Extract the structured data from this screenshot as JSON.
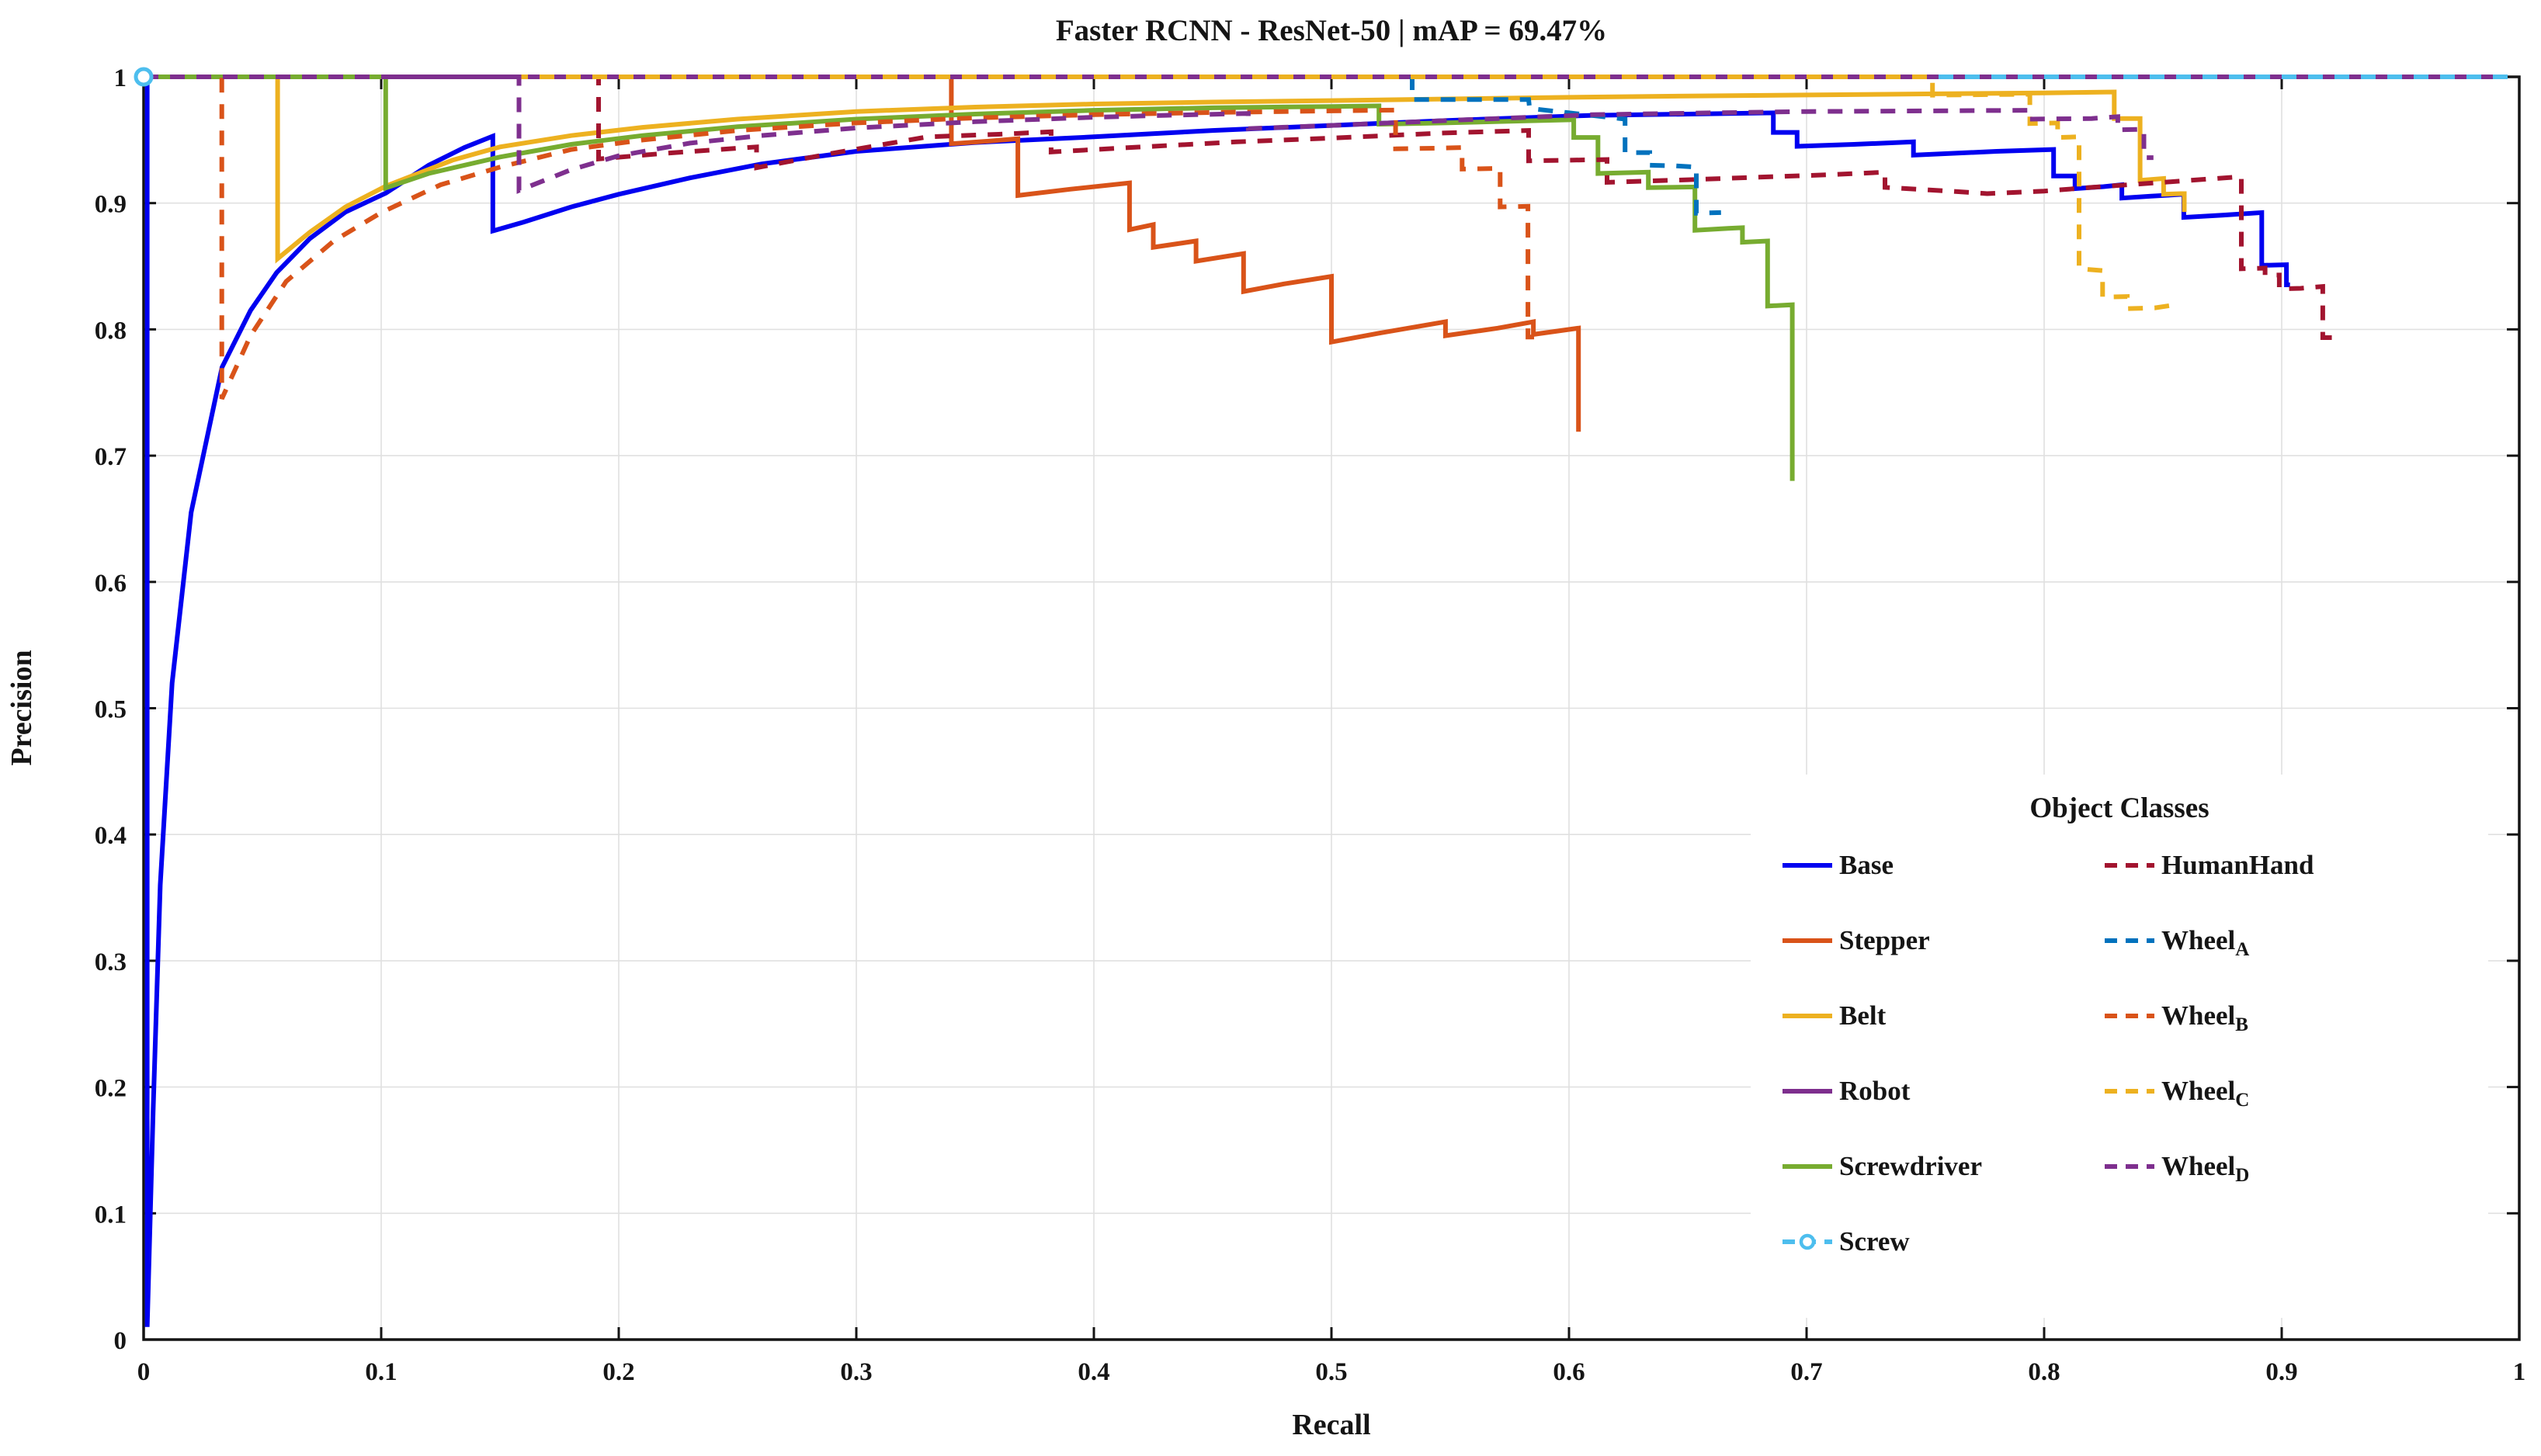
{
  "figure": {
    "title": "Faster RCNN - ResNet-50 | mAP = 69.47%",
    "xlabel": "Recall",
    "ylabel": "Precision"
  },
  "legend": {
    "title": "Object Classes",
    "columns": [
      [
        "base",
        "stepper",
        "belt",
        "robot",
        "screwdriver",
        "screw"
      ],
      [
        "humanhand",
        "wheel_a",
        "wheel_b",
        "wheel_c",
        "wheel_d"
      ]
    ]
  },
  "chart_data": {
    "type": "line",
    "title": "Faster RCNN - ResNet-50 | mAP = 69.47%",
    "xlabel": "Recall",
    "ylabel": "Precision",
    "xlim": [
      0,
      1
    ],
    "ylim": [
      0,
      1
    ],
    "x_ticks": [
      "0",
      "0.1",
      "0.2",
      "0.3",
      "0.4",
      "0.5",
      "0.6",
      "0.7",
      "0.8",
      "0.9",
      "1"
    ],
    "y_ticks": [
      "0",
      "0.1",
      "0.2",
      "0.3",
      "0.4",
      "0.5",
      "0.6",
      "0.7",
      "0.8",
      "0.9",
      "1"
    ],
    "grid": true,
    "grid_color": "#e0e0e0",
    "axis_color": "#141414",
    "legend_position": "lower right",
    "legend_title": "Object Classes",
    "series": [
      {
        "id": "base",
        "name": "Base",
        "color": "#0000f0",
        "style": "solid",
        "marker": "none",
        "points": [
          [
            0.0015,
            1.0
          ],
          [
            0.0015,
            0.01
          ],
          [
            0.004,
            0.18
          ],
          [
            0.007,
            0.36
          ],
          [
            0.012,
            0.52
          ],
          [
            0.02,
            0.655
          ],
          [
            0.033,
            0.77
          ],
          [
            0.045,
            0.815
          ],
          [
            0.056,
            0.845
          ],
          [
            0.07,
            0.872
          ],
          [
            0.085,
            0.893
          ],
          [
            0.102,
            0.908
          ],
          [
            0.12,
            0.93
          ],
          [
            0.135,
            0.944
          ],
          [
            0.147,
            0.953
          ],
          [
            0.147,
            0.878
          ],
          [
            0.16,
            0.885
          ],
          [
            0.18,
            0.897
          ],
          [
            0.2,
            0.907
          ],
          [
            0.23,
            0.92
          ],
          [
            0.26,
            0.931
          ],
          [
            0.3,
            0.941
          ],
          [
            0.35,
            0.948
          ],
          [
            0.4,
            0.9525
          ],
          [
            0.45,
            0.9575
          ],
          [
            0.5,
            0.9615
          ],
          [
            0.55,
            0.9655
          ],
          [
            0.61,
            0.9695
          ],
          [
            0.65,
            0.9705
          ],
          [
            0.686,
            0.9715
          ],
          [
            0.686,
            0.956
          ],
          [
            0.696,
            0.956
          ],
          [
            0.696,
            0.945
          ],
          [
            0.72,
            0.9465
          ],
          [
            0.745,
            0.9485
          ],
          [
            0.745,
            0.938
          ],
          [
            0.78,
            0.941
          ],
          [
            0.804,
            0.9425
          ],
          [
            0.804,
            0.9215
          ],
          [
            0.813,
            0.9215
          ],
          [
            0.813,
            0.9115
          ],
          [
            0.825,
            0.913
          ],
          [
            0.8327,
            0.9145
          ],
          [
            0.8327,
            0.904
          ],
          [
            0.845,
            0.9055
          ],
          [
            0.8588,
            0.907
          ],
          [
            0.8588,
            0.8887
          ],
          [
            0.875,
            0.8905
          ],
          [
            0.8916,
            0.8925
          ],
          [
            0.8916,
            0.8507
          ],
          [
            0.902,
            0.8512
          ],
          [
            0.902,
            0.8353
          ],
          [
            0.9035,
            0.8353
          ]
        ]
      },
      {
        "id": "stepper",
        "name": "Stepper",
        "color": "#d95319",
        "style": "solid",
        "marker": "none",
        "points": [
          [
            0,
            1.0
          ],
          [
            0.34,
            1.0
          ],
          [
            0.34,
            0.947
          ],
          [
            0.355,
            0.949
          ],
          [
            0.368,
            0.951
          ],
          [
            0.368,
            0.906
          ],
          [
            0.39,
            0.911
          ],
          [
            0.415,
            0.916
          ],
          [
            0.415,
            0.879
          ],
          [
            0.425,
            0.883
          ],
          [
            0.425,
            0.865
          ],
          [
            0.443,
            0.87
          ],
          [
            0.443,
            0.854
          ],
          [
            0.463,
            0.86
          ],
          [
            0.463,
            0.83
          ],
          [
            0.48,
            0.836
          ],
          [
            0.5,
            0.842
          ],
          [
            0.5,
            0.79
          ],
          [
            0.52,
            0.797
          ],
          [
            0.548,
            0.806
          ],
          [
            0.548,
            0.795
          ],
          [
            0.57,
            0.801
          ],
          [
            0.585,
            0.806
          ],
          [
            0.585,
            0.796
          ],
          [
            0.604,
            0.801
          ],
          [
            0.604,
            0.719
          ]
        ]
      },
      {
        "id": "belt",
        "name": "Belt",
        "color": "#edb120",
        "style": "solid",
        "marker": "none",
        "points": [
          [
            0,
            1.0
          ],
          [
            0.0564,
            1.0
          ],
          [
            0.0564,
            0.856
          ],
          [
            0.07,
            0.877
          ],
          [
            0.085,
            0.897
          ],
          [
            0.102,
            0.9135
          ],
          [
            0.13,
            0.934
          ],
          [
            0.15,
            0.9445
          ],
          [
            0.18,
            0.9535
          ],
          [
            0.21,
            0.96
          ],
          [
            0.25,
            0.9665
          ],
          [
            0.3,
            0.9725
          ],
          [
            0.35,
            0.976
          ],
          [
            0.4,
            0.9785
          ],
          [
            0.45,
            0.98
          ],
          [
            0.5,
            0.9812
          ],
          [
            0.55,
            0.9825
          ],
          [
            0.6,
            0.9838
          ],
          [
            0.65,
            0.9848
          ],
          [
            0.7,
            0.9856
          ],
          [
            0.75,
            0.9865
          ],
          [
            0.8,
            0.9873
          ],
          [
            0.8295,
            0.988
          ],
          [
            0.8295,
            0.967
          ],
          [
            0.8404,
            0.967
          ],
          [
            0.8404,
            0.918
          ],
          [
            0.8503,
            0.9195
          ],
          [
            0.8503,
            0.907
          ],
          [
            0.8575,
            0.9075
          ],
          [
            0.859,
            0.9075
          ],
          [
            0.859,
            0.893
          ]
        ]
      },
      {
        "id": "robot",
        "name": "Robot",
        "color": "#7e2f8e",
        "style": "solid",
        "marker": "none",
        "points": [
          [
            0,
            1.0
          ],
          [
            0.99,
            1.0
          ]
        ]
      },
      {
        "id": "screwdriver",
        "name": "Screwdriver",
        "color": "#77ac30",
        "style": "solid",
        "marker": "none",
        "points": [
          [
            0,
            1.0
          ],
          [
            0.1019,
            1.0
          ],
          [
            0.1019,
            0.912
          ],
          [
            0.12,
            0.9235
          ],
          [
            0.15,
            0.9365
          ],
          [
            0.18,
            0.9465
          ],
          [
            0.21,
            0.9535
          ],
          [
            0.25,
            0.9605
          ],
          [
            0.3,
            0.9665
          ],
          [
            0.35,
            0.9705
          ],
          [
            0.4,
            0.9735
          ],
          [
            0.45,
            0.9755
          ],
          [
            0.5,
            0.9765
          ],
          [
            0.52,
            0.977
          ],
          [
            0.52,
            0.9625
          ],
          [
            0.547,
            0.9635
          ],
          [
            0.575,
            0.9648
          ],
          [
            0.602,
            0.966
          ],
          [
            0.602,
            0.952
          ],
          [
            0.6122,
            0.952
          ],
          [
            0.6122,
            0.9235
          ],
          [
            0.6334,
            0.9245
          ],
          [
            0.6334,
            0.9123
          ],
          [
            0.653,
            0.9128
          ],
          [
            0.653,
            0.8785
          ],
          [
            0.667,
            0.88
          ],
          [
            0.673,
            0.8805
          ],
          [
            0.673,
            0.869
          ],
          [
            0.6836,
            0.87
          ],
          [
            0.6836,
            0.8185
          ],
          [
            0.694,
            0.8195
          ],
          [
            0.694,
            0.68
          ]
        ]
      },
      {
        "id": "screw",
        "name": "Screw",
        "color": "#4dbeee",
        "style": "dashed",
        "marker": "circle",
        "points": [
          [
            0,
            1.0
          ],
          [
            1.0,
            1.0
          ]
        ]
      },
      {
        "id": "humanhand",
        "name": "HumanHand",
        "color": "#a2142f",
        "style": "dashed",
        "marker": "none",
        "points": [
          [
            0,
            1.0
          ],
          [
            0.1915,
            1.0
          ],
          [
            0.1915,
            0.935
          ],
          [
            0.22,
            0.9395
          ],
          [
            0.258,
            0.9445
          ],
          [
            0.258,
            0.928
          ],
          [
            0.29,
            0.9395
          ],
          [
            0.33,
            0.9525
          ],
          [
            0.36,
            0.9545
          ],
          [
            0.382,
            0.9565
          ],
          [
            0.382,
            0.9405
          ],
          [
            0.42,
            0.9445
          ],
          [
            0.46,
            0.9485
          ],
          [
            0.5,
            0.9515
          ],
          [
            0.547,
            0.9555
          ],
          [
            0.583,
            0.9575
          ],
          [
            0.583,
            0.9335
          ],
          [
            0.616,
            0.9345
          ],
          [
            0.616,
            0.9165
          ],
          [
            0.65,
            0.9185
          ],
          [
            0.68,
            0.9205
          ],
          [
            0.71,
            0.9225
          ],
          [
            0.733,
            0.9245
          ],
          [
            0.733,
            0.9125
          ],
          [
            0.76,
            0.9095
          ],
          [
            0.776,
            0.9075
          ],
          [
            0.8,
            0.9095
          ],
          [
            0.82,
            0.9125
          ],
          [
            0.85,
            0.9165
          ],
          [
            0.88,
            0.9205
          ],
          [
            0.883,
            0.921
          ],
          [
            0.883,
            0.848
          ],
          [
            0.893,
            0.8485
          ],
          [
            0.893,
            0.843
          ],
          [
            0.899,
            0.843
          ],
          [
            0.899,
            0.832
          ],
          [
            0.908,
            0.8325
          ],
          [
            0.9173,
            0.834
          ],
          [
            0.9173,
            0.7935
          ],
          [
            0.922,
            0.7935
          ]
        ]
      },
      {
        "id": "wheel_a",
        "name": "Wheel",
        "sub": "A",
        "color": "#0072bd",
        "style": "dashed",
        "marker": "none",
        "points": [
          [
            0,
            1.0
          ],
          [
            0.534,
            1.0
          ],
          [
            0.534,
            0.982
          ],
          [
            0.583,
            0.982
          ],
          [
            0.5834,
            0.975
          ],
          [
            0.6,
            0.9715
          ],
          [
            0.6236,
            0.9665
          ],
          [
            0.6236,
            0.94
          ],
          [
            0.634,
            0.94
          ],
          [
            0.634,
            0.93
          ],
          [
            0.645,
            0.9295
          ],
          [
            0.6536,
            0.9285
          ],
          [
            0.6536,
            0.892
          ],
          [
            0.664,
            0.8925
          ]
        ]
      },
      {
        "id": "wheel_b",
        "name": "Wheel",
        "sub": "B",
        "color": "#d95319",
        "style": "dashed",
        "marker": "none",
        "points": [
          [
            0,
            1.0
          ],
          [
            0.0329,
            1.0
          ],
          [
            0.0329,
            0.745
          ],
          [
            0.045,
            0.795
          ],
          [
            0.06,
            0.838
          ],
          [
            0.08,
            0.87
          ],
          [
            0.1,
            0.8925
          ],
          [
            0.125,
            0.9145
          ],
          [
            0.15,
            0.9285
          ],
          [
            0.18,
            0.9425
          ],
          [
            0.21,
            0.95
          ],
          [
            0.25,
            0.9575
          ],
          [
            0.3,
            0.9635
          ],
          [
            0.35,
            0.9675
          ],
          [
            0.4,
            0.97
          ],
          [
            0.45,
            0.9718
          ],
          [
            0.5,
            0.973
          ],
          [
            0.527,
            0.9737
          ],
          [
            0.527,
            0.943
          ],
          [
            0.545,
            0.9435
          ],
          [
            0.555,
            0.944
          ],
          [
            0.555,
            0.927
          ],
          [
            0.571,
            0.9275
          ],
          [
            0.571,
            0.897
          ],
          [
            0.5827,
            0.8975
          ],
          [
            0.5827,
            0.794
          ],
          [
            0.586,
            0.794
          ]
        ]
      },
      {
        "id": "wheel_c",
        "name": "Wheel",
        "sub": "C",
        "color": "#edb120",
        "style": "dashed",
        "marker": "none",
        "points": [
          [
            0,
            1.0
          ],
          [
            0.753,
            1.0
          ],
          [
            0.753,
            0.9855
          ],
          [
            0.79,
            0.9862
          ],
          [
            0.794,
            0.9862
          ],
          [
            0.794,
            0.963
          ],
          [
            0.8057,
            0.9635
          ],
          [
            0.8057,
            0.952
          ],
          [
            0.8147,
            0.9525
          ],
          [
            0.8147,
            0.848
          ],
          [
            0.8246,
            0.8465
          ],
          [
            0.8246,
            0.8255
          ],
          [
            0.835,
            0.826
          ],
          [
            0.835,
            0.8165
          ],
          [
            0.8465,
            0.817
          ],
          [
            0.857,
            0.82
          ]
        ]
      },
      {
        "id": "wheel_d",
        "name": "Wheel",
        "sub": "D",
        "color": "#7e2f8e",
        "style": "dashed",
        "marker": "none",
        "points": [
          [
            0,
            1.0
          ],
          [
            0.158,
            1.0
          ],
          [
            0.158,
            0.91
          ],
          [
            0.18,
            0.9265
          ],
          [
            0.2,
            0.9375
          ],
          [
            0.23,
            0.9475
          ],
          [
            0.26,
            0.9535
          ],
          [
            0.3,
            0.9595
          ],
          [
            0.35,
            0.9645
          ],
          [
            0.4,
            0.968
          ],
          [
            0.43,
            0.9695
          ],
          [
            0.465,
            0.971
          ],
          [
            0.465,
            0.959
          ],
          [
            0.5,
            0.9615
          ],
          [
            0.55,
            0.9655
          ],
          [
            0.61,
            0.97
          ],
          [
            0.66,
            0.9715
          ],
          [
            0.7,
            0.9725
          ],
          [
            0.75,
            0.973
          ],
          [
            0.794,
            0.9735
          ],
          [
            0.794,
            0.9665
          ],
          [
            0.82,
            0.967
          ],
          [
            0.831,
            0.9685
          ],
          [
            0.831,
            0.958
          ],
          [
            0.842,
            0.9585
          ],
          [
            0.842,
            0.936
          ],
          [
            0.846,
            0.936
          ]
        ]
      }
    ]
  }
}
